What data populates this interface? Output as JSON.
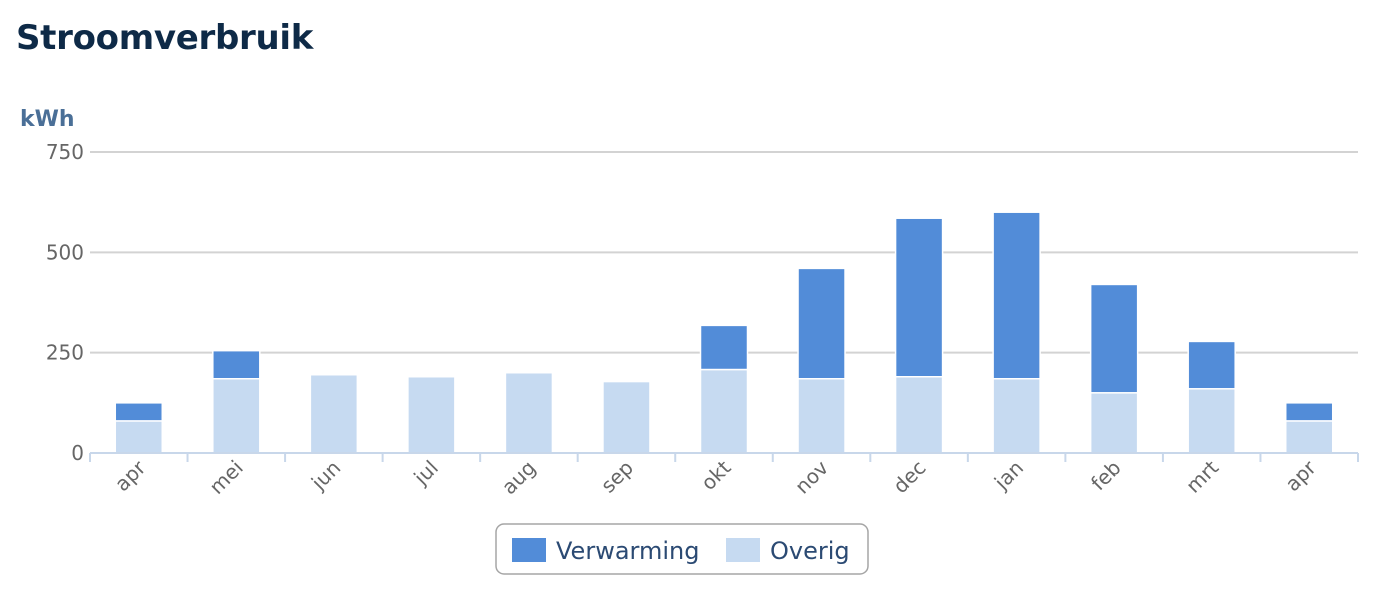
{
  "title": "Stroomverbruik",
  "chart_data": {
    "type": "bar",
    "stacked": true,
    "ylabel": "kWh",
    "ylim": [
      0,
      750
    ],
    "yticks": [
      0,
      250,
      500,
      750
    ],
    "grid": true,
    "legend_position": "bottom-center",
    "categories": [
      "apr",
      "mei",
      "jun",
      "jul",
      "aug",
      "sep",
      "okt",
      "nov",
      "dec",
      "jan",
      "feb",
      "mrt",
      "apr"
    ],
    "series": [
      {
        "name": "Overig",
        "color": "#c6daf1",
        "values": [
          80,
          185,
          195,
          190,
          200,
          178,
          208,
          185,
          190,
          185,
          150,
          160,
          80
        ]
      },
      {
        "name": "Verwarming",
        "color": "#528cd8",
        "values": [
          45,
          70,
          0,
          0,
          0,
          0,
          110,
          275,
          395,
          415,
          270,
          118,
          45
        ]
      }
    ],
    "legend_order": [
      "Verwarming",
      "Overig"
    ]
  }
}
